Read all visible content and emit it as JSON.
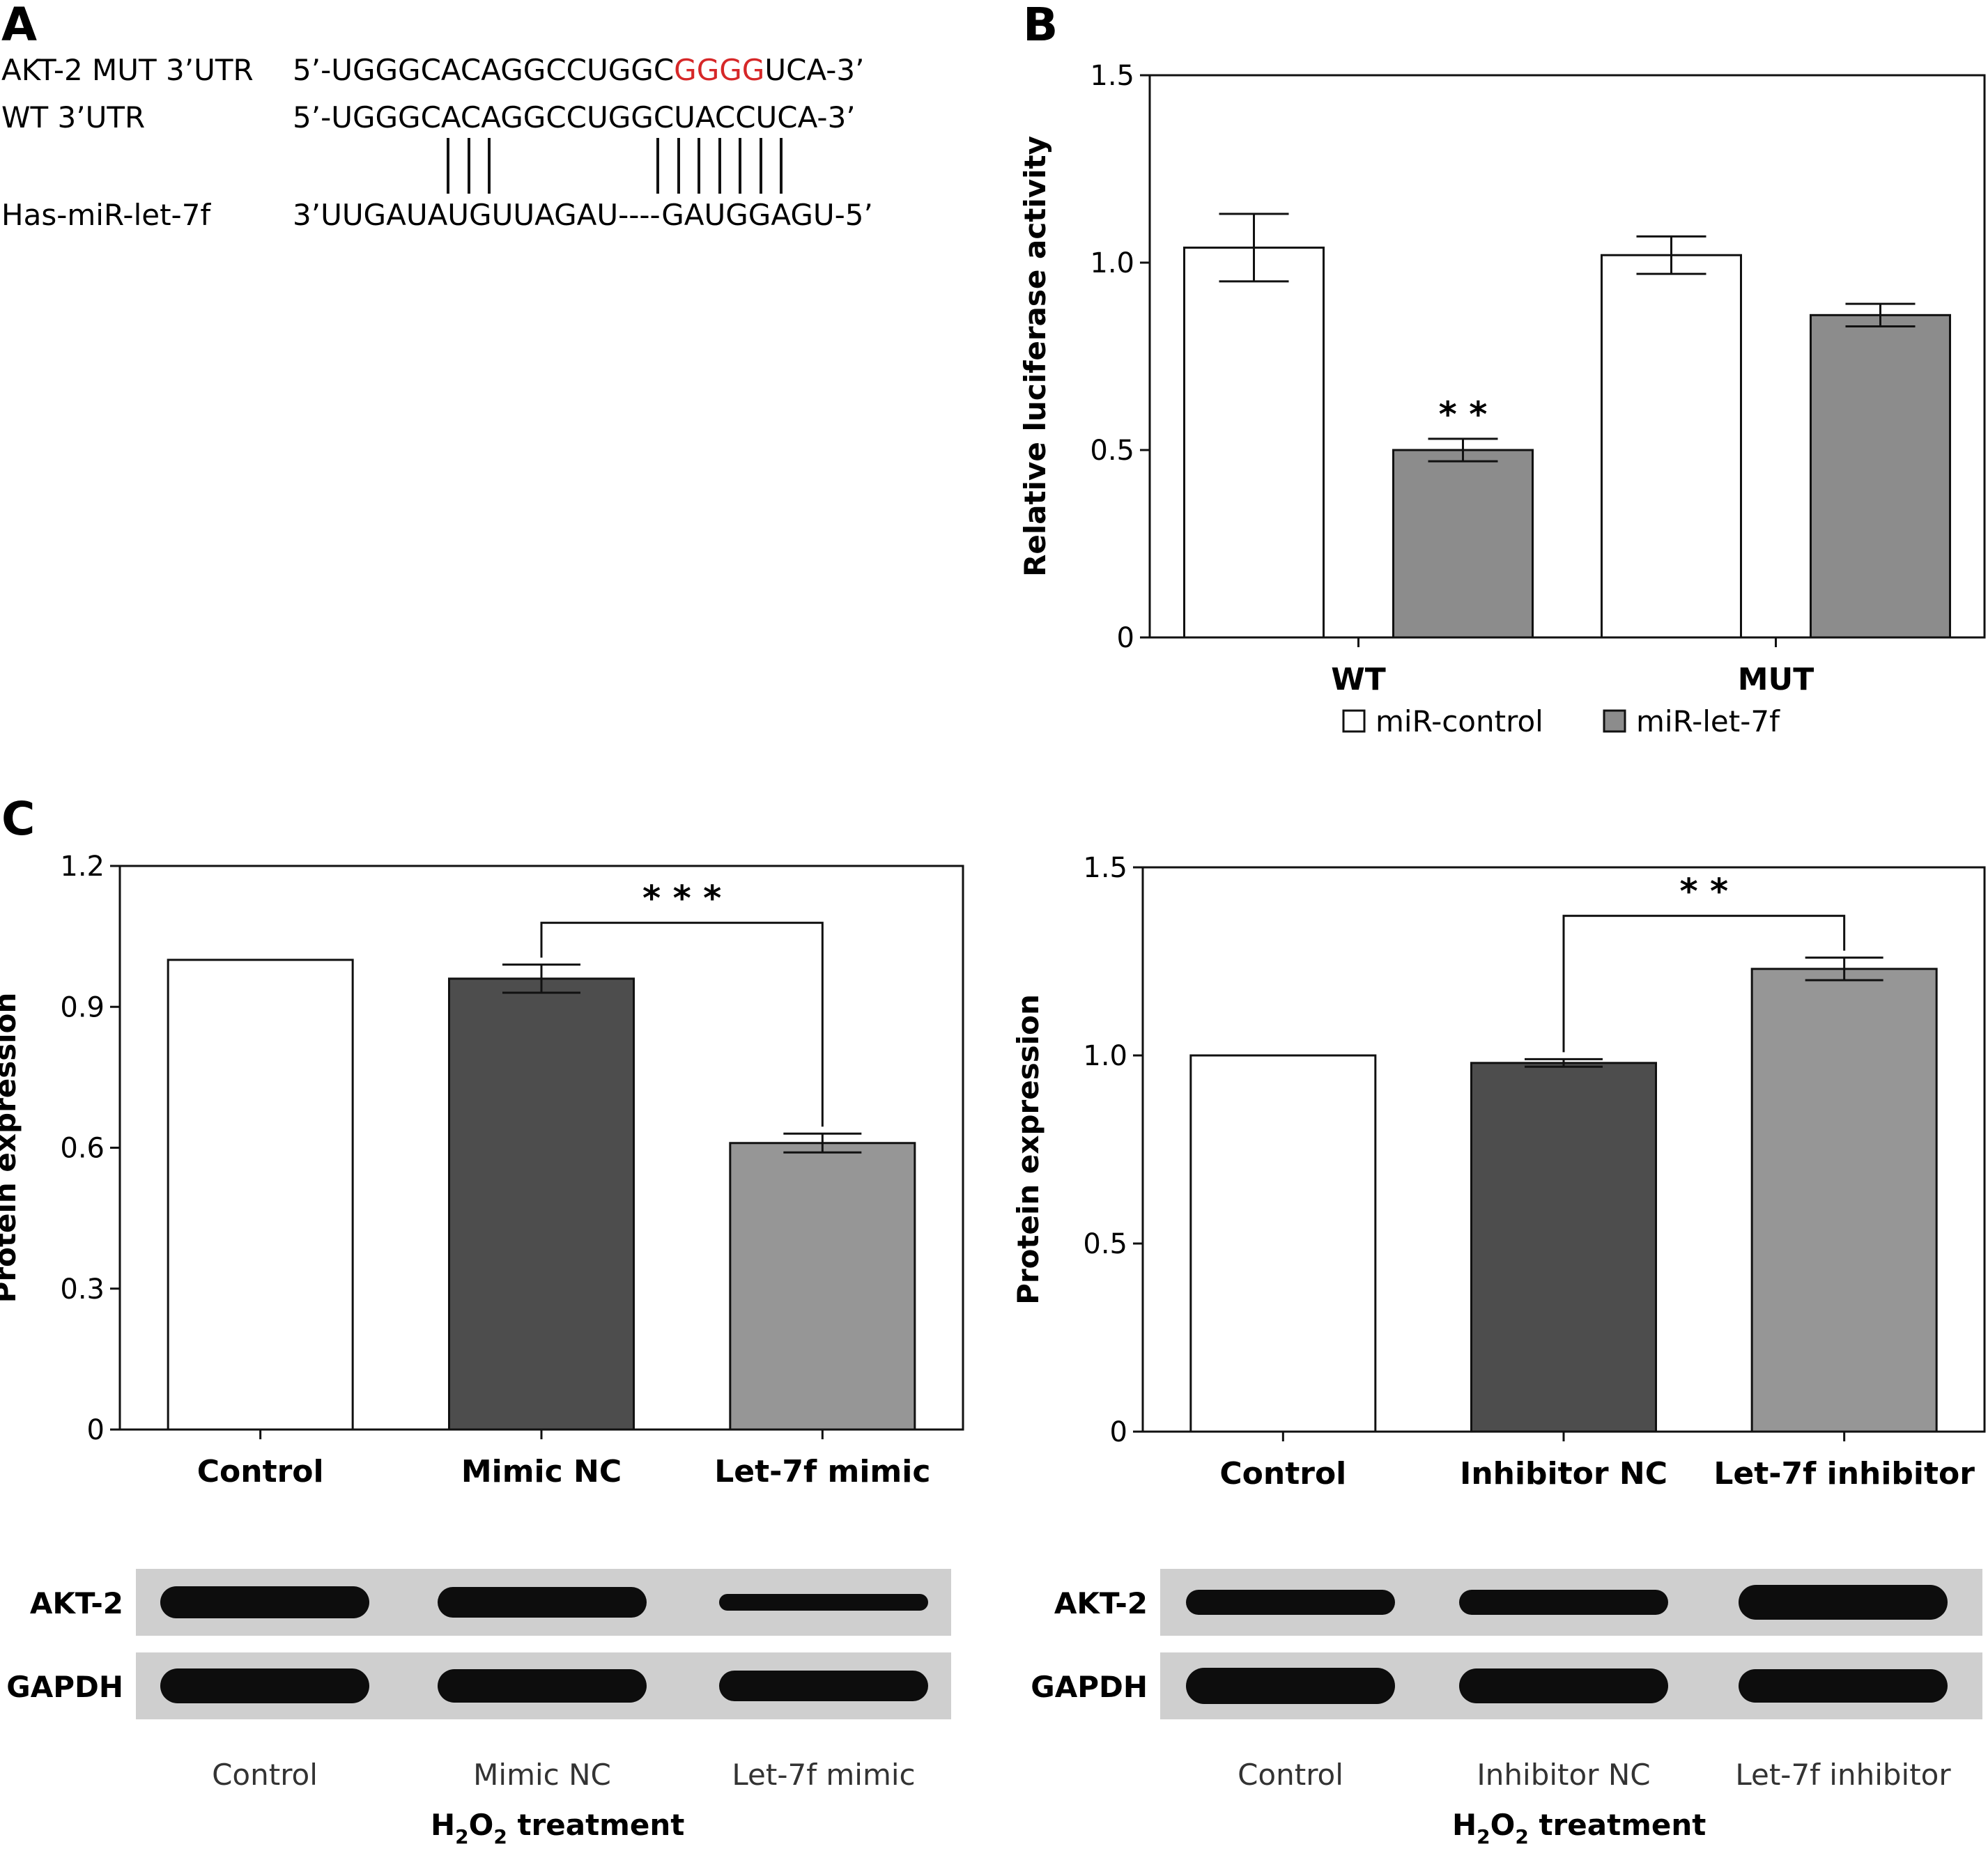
{
  "panel_letters": [
    "A",
    "B",
    "C"
  ],
  "panel_a": {
    "rows": [
      {
        "label": "AKT-2 MUT 3’UTR",
        "prefix": "5’-UGGGCACAGGCCUGGC",
        "highlight": "GGGG",
        "suffix": "UCA-3’"
      },
      {
        "label": "WT 3’UTR",
        "prefix": "5’-UGGGCACAGGCCUGGCUACCUCA-3’",
        "highlight": "",
        "suffix": ""
      },
      {
        "label": "Has-miR-let-7f",
        "prefix": "3’UUGAUAUGUUAGAU----GAUGGAGU-5’",
        "highlight": "",
        "suffix": ""
      }
    ],
    "colors": {
      "highlight": "#d62728"
    }
  },
  "chart_data": [
    {
      "type": "bar",
      "panel": "B",
      "categories": [
        "WT",
        "MUT"
      ],
      "series": [
        {
          "name": "miR-control",
          "values": [
            1.04,
            1.02
          ],
          "errors": [
            0.09,
            0.05
          ],
          "color": "#ffffff"
        },
        {
          "name": "miR-let-7f",
          "values": [
            0.5,
            0.86
          ],
          "errors": [
            0.03,
            0.03
          ],
          "color": "#8c8c8c"
        }
      ],
      "annotations": [
        {
          "category": 0,
          "series": 1,
          "text": "* *"
        }
      ],
      "ylabel": "Relative luciferase activity",
      "ylim": [
        0,
        1.5
      ],
      "yticks": [
        "0",
        "0.5",
        "1.0",
        "1.5"
      ],
      "legend": "bottom"
    },
    {
      "type": "bar",
      "panel": "C-left",
      "categories": [
        "Control",
        "Mimic NC",
        "Let-7f mimic"
      ],
      "values": [
        1.0,
        0.96,
        0.61
      ],
      "errors": [
        0,
        0.03,
        0.02
      ],
      "colors": [
        "#ffffff",
        "#4d4d4d",
        "#969696"
      ],
      "ylabel": "Protein expression",
      "ylim": [
        0,
        1.2
      ],
      "yticks": [
        "0",
        "0.3",
        "0.6",
        "0.9",
        "1.2"
      ],
      "significance": {
        "from": 1,
        "to": 2,
        "text": "* * *"
      }
    },
    {
      "type": "bar",
      "panel": "C-right",
      "categories": [
        "Control",
        "Inhibitor NC",
        "Let-7f inhibitor"
      ],
      "values": [
        1.0,
        0.98,
        1.23
      ],
      "errors": [
        0,
        0.01,
        0.03
      ],
      "colors": [
        "#ffffff",
        "#4d4d4d",
        "#969696"
      ],
      "ylabel": "Protein expression",
      "ylim": [
        0,
        1.5
      ],
      "yticks": [
        "0",
        "0.5",
        "1.0",
        "1.5"
      ],
      "significance": {
        "from": 1,
        "to": 2,
        "text": "* *"
      }
    }
  ],
  "western_blots": [
    {
      "rows": [
        "AKT-2",
        "GAPDH"
      ],
      "lanes": [
        "Control",
        "Mimic NC",
        "Let-7f mimic"
      ],
      "treatment": "H2O2 treatment",
      "treatment_parts": [
        "H",
        "2",
        "O",
        "2",
        " treatment"
      ]
    },
    {
      "rows": [
        "AKT-2",
        "GAPDH"
      ],
      "lanes": [
        "Control",
        "Inhibitor NC",
        "Let-7f inhibitor"
      ],
      "treatment": "H2O2 treatment",
      "treatment_parts": [
        "H",
        "2",
        "O",
        "2",
        " treatment"
      ]
    }
  ]
}
